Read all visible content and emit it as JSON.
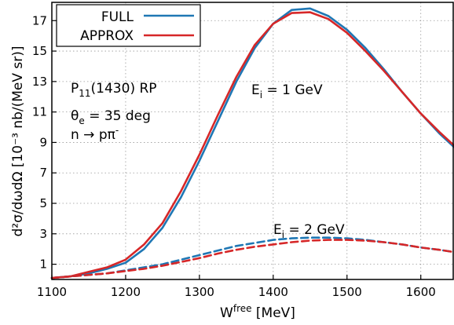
{
  "chart_data": {
    "type": "line",
    "xlabel": "W",
    "xlabel_sup": "free",
    "xlabel_unit": " [MeV]",
    "ylabel": "d²σ/dωdΩ [10⁻³ nb/(MeV sr)]",
    "xlim": [
      1100,
      1645
    ],
    "ylim": [
      0,
      18.2
    ],
    "x_ticks": [
      1100,
      1200,
      1300,
      1400,
      1500,
      1600
    ],
    "y_ticks": [
      1,
      3,
      5,
      7,
      9,
      11,
      13,
      15,
      17
    ],
    "grid": "dotted",
    "legend": {
      "placement": "top-left",
      "entries": [
        {
          "label": "FULL",
          "color": "#1f77b4"
        },
        {
          "label": "APPROX",
          "color": "#d62728"
        }
      ]
    },
    "annotations": {
      "resonance_main": "P",
      "resonance_sub": "11",
      "resonance_rest": "(1430) RP",
      "angle_main": "θ",
      "angle_sub": "e",
      "angle_rest": " = 35 deg",
      "reaction_left": "n → pπ",
      "reaction_sup": "-",
      "energy1_main": "E",
      "energy1_sub": "i",
      "energy1_rest": " = 1 GeV",
      "energy2_main": "E",
      "energy2_sub": "i",
      "energy2_rest": " = 2 GeV"
    },
    "x": [
      1100,
      1125,
      1150,
      1175,
      1200,
      1225,
      1250,
      1275,
      1300,
      1325,
      1350,
      1375,
      1400,
      1425,
      1450,
      1475,
      1500,
      1525,
      1550,
      1575,
      1600,
      1625,
      1645
    ],
    "series": [
      {
        "name": "FULL",
        "energy": "E_i = 1 GeV",
        "style": "solid",
        "color": "#1f77b4",
        "values": [
          0.1,
          0.2,
          0.4,
          0.7,
          1.1,
          2.0,
          3.4,
          5.4,
          7.8,
          10.4,
          13.0,
          15.2,
          16.8,
          17.7,
          17.8,
          17.3,
          16.4,
          15.2,
          13.8,
          12.3,
          10.9,
          9.6,
          8.7
        ]
      },
      {
        "name": "APPROX",
        "energy": "E_i = 1 GeV",
        "style": "solid",
        "color": "#d62728",
        "values": [
          0.1,
          0.2,
          0.5,
          0.8,
          1.3,
          2.3,
          3.7,
          5.8,
          8.2,
          10.8,
          13.3,
          15.4,
          16.8,
          17.5,
          17.55,
          17.1,
          16.2,
          15.0,
          13.7,
          12.3,
          10.9,
          9.7,
          8.8
        ]
      },
      {
        "name": "FULL",
        "energy": "E_i = 2 GeV",
        "style": "dashed",
        "color": "#1f77b4",
        "values": [
          0.1,
          0.2,
          0.3,
          0.4,
          0.6,
          0.8,
          1.0,
          1.3,
          1.6,
          1.9,
          2.2,
          2.4,
          2.6,
          2.7,
          2.75,
          2.75,
          2.7,
          2.6,
          2.45,
          2.3,
          2.1,
          1.95,
          1.8
        ]
      },
      {
        "name": "APPROX",
        "energy": "E_i = 2 GeV",
        "style": "dashed",
        "color": "#d62728",
        "values": [
          0.1,
          0.2,
          0.3,
          0.4,
          0.55,
          0.7,
          0.9,
          1.15,
          1.4,
          1.7,
          1.95,
          2.15,
          2.3,
          2.45,
          2.55,
          2.6,
          2.6,
          2.55,
          2.45,
          2.3,
          2.1,
          1.95,
          1.8
        ]
      }
    ]
  }
}
